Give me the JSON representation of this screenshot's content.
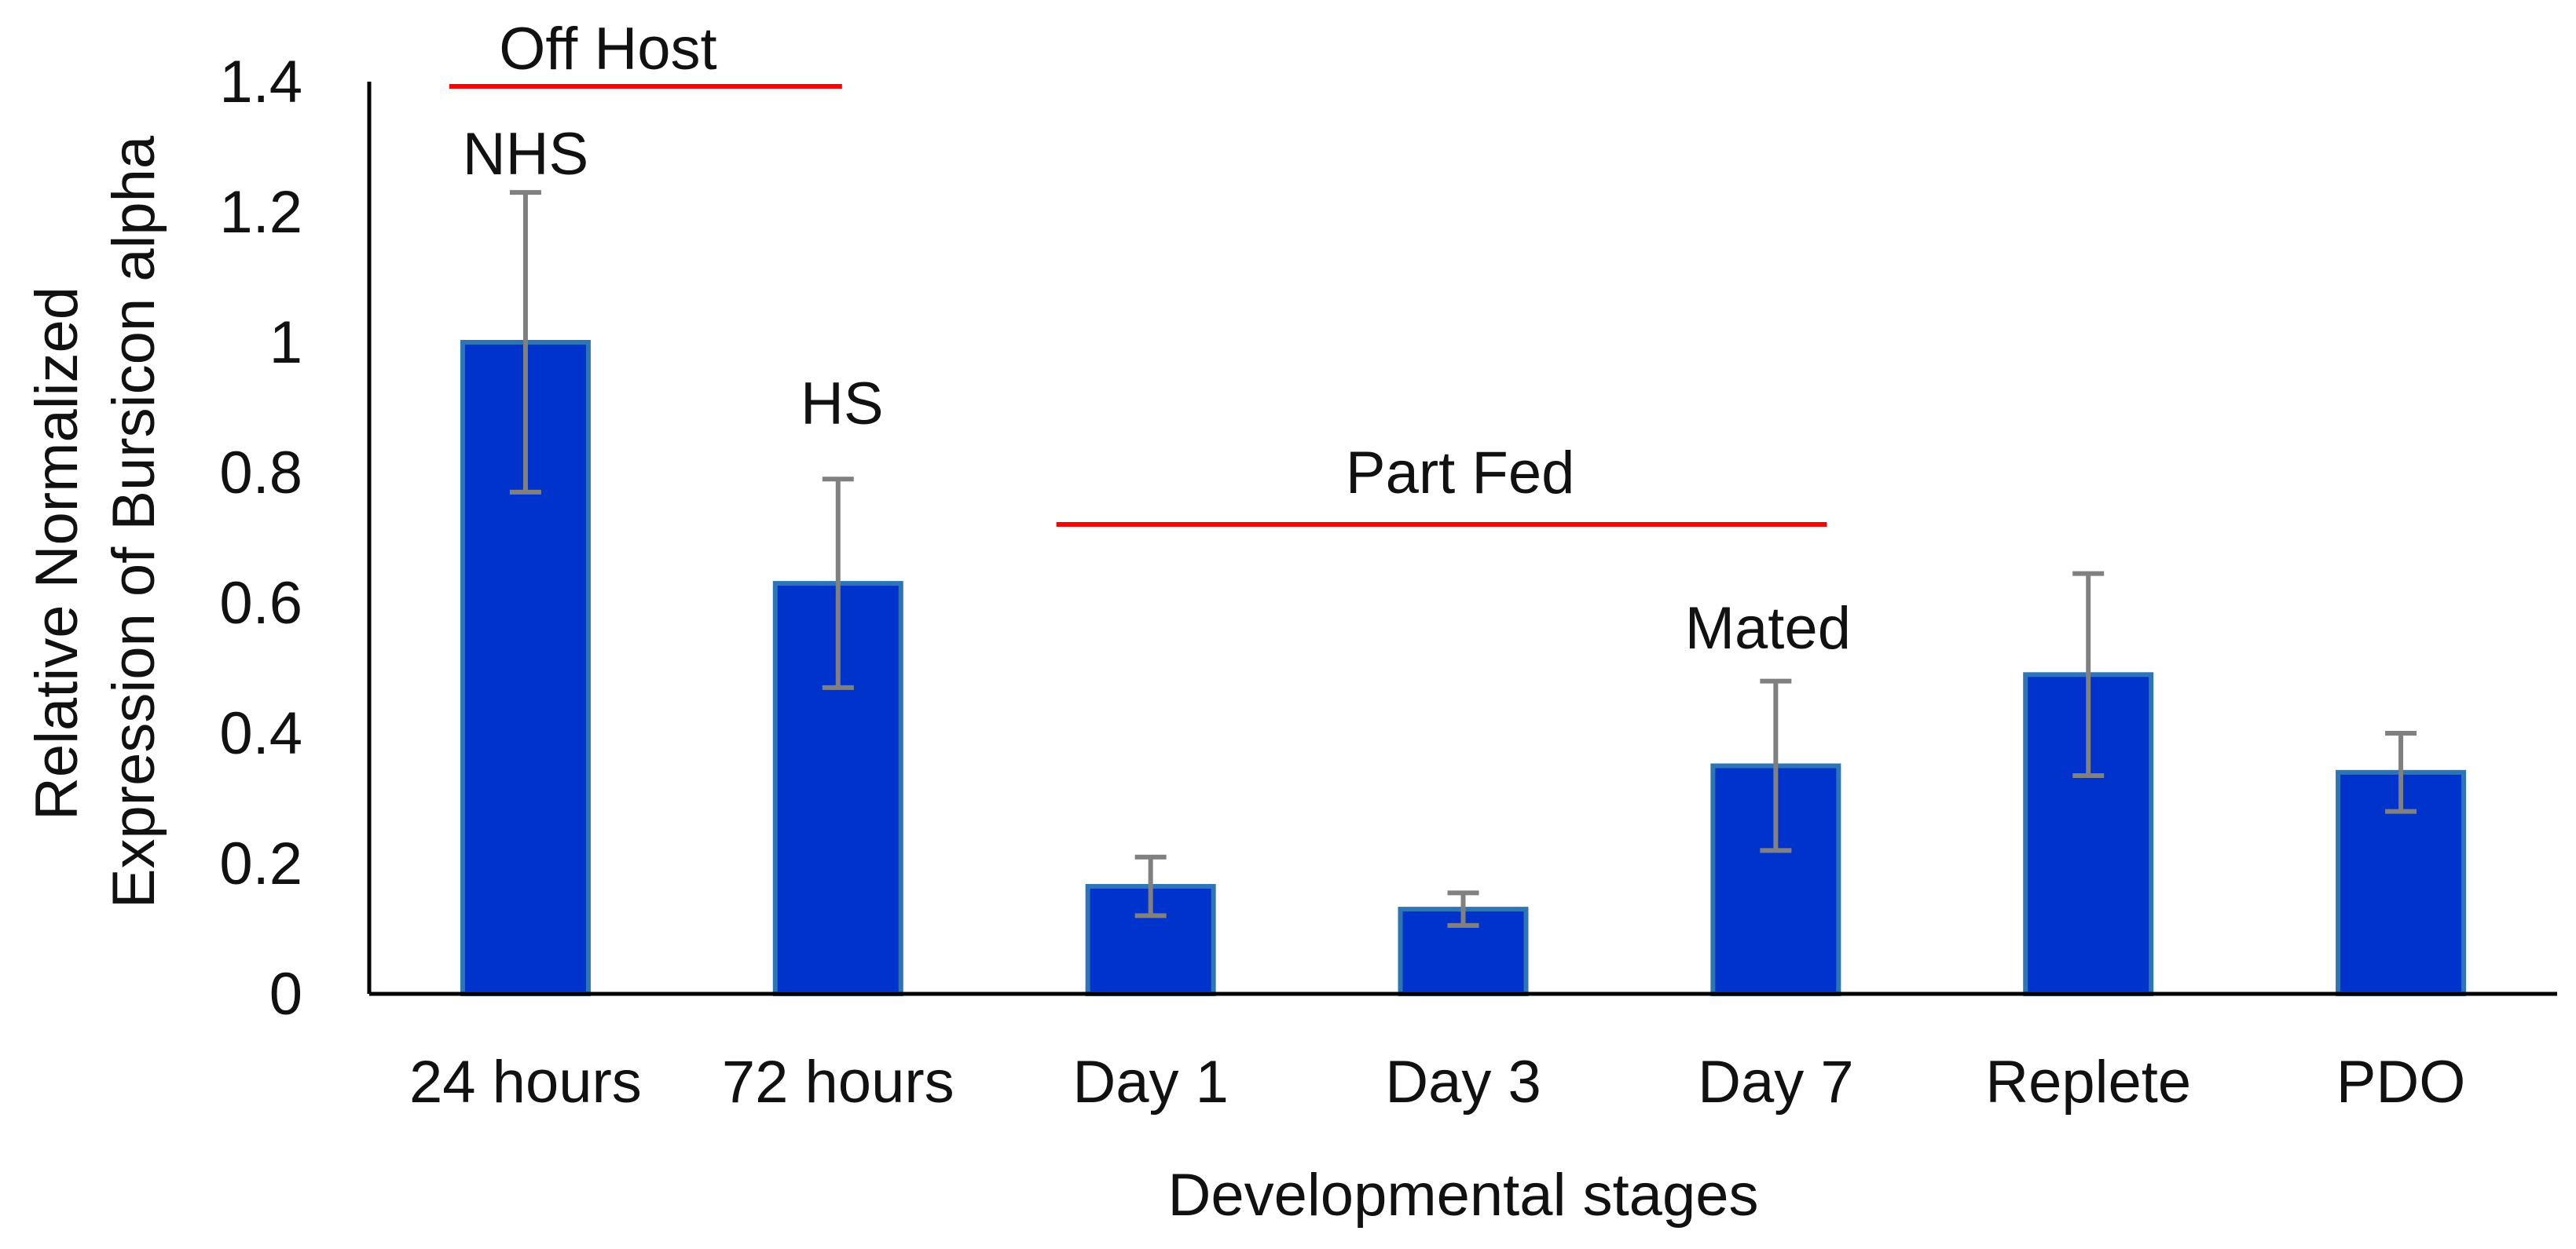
{
  "chart_data": {
    "type": "bar",
    "title": "",
    "xlabel": "Developmental stages",
    "ylabel_lines": [
      "Relative Normalized",
      "Expression of Bursicon alpha"
    ],
    "categories": [
      "24 hours",
      "72 hours",
      "Day 1",
      "Day 3",
      "Day 7",
      "Replete",
      "PDO"
    ],
    "values": [
      1.0,
      0.63,
      0.165,
      0.13,
      0.35,
      0.49,
      0.34
    ],
    "errors": [
      0.23,
      0.16,
      0.045,
      0.025,
      0.13,
      0.155,
      0.06
    ],
    "ylim": [
      0,
      1.4
    ],
    "yticks": [
      0,
      0.2,
      0.4,
      0.6,
      0.8,
      1,
      1.2,
      1.4
    ],
    "ytick_labels": [
      "0",
      "0.2",
      "0.4",
      "0.6",
      "0.8",
      "1",
      "1.2",
      "1.4"
    ],
    "grid": false,
    "legend": "none",
    "annotations": {
      "off_host": {
        "label": "Off Host",
        "from_category": "24 hours",
        "to_category": "72 hours"
      },
      "part_fed": {
        "label": "Part Fed",
        "from_category": "Day 1",
        "to_category": "Day 7"
      },
      "nhs": {
        "label": "NHS",
        "category": "24 hours"
      },
      "hs": {
        "label": "HS",
        "category": "72 hours"
      },
      "mated": {
        "label": "Mated",
        "category": "Day 7"
      }
    },
    "colors": {
      "bar_fill": "#0033CC",
      "bar_stroke": "#2E75B6",
      "error_bar": "#808080",
      "annotation_line": "#FF0000",
      "axis": "#000000"
    }
  }
}
